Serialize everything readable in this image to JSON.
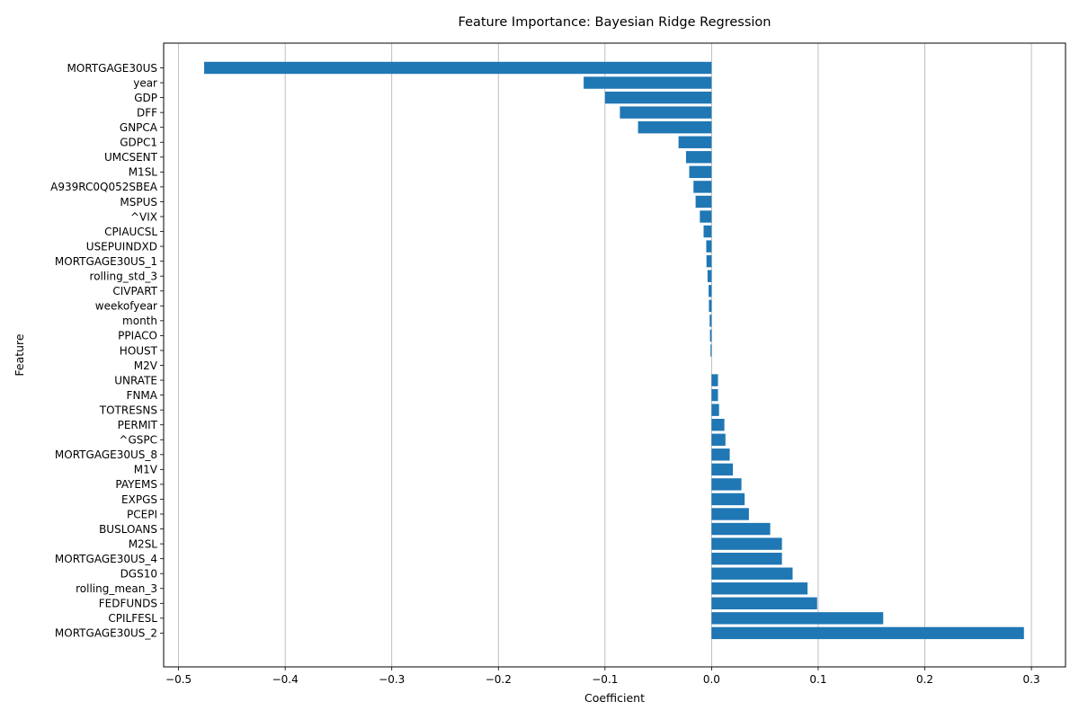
{
  "chart_data": {
    "type": "bar",
    "orientation": "horizontal",
    "title": "Feature Importance: Bayesian Ridge Regression",
    "xlabel": "Coefficient",
    "ylabel": "Feature",
    "xlim": [
      -0.514,
      0.332
    ],
    "x_ticks": [
      -0.5,
      -0.4,
      -0.3,
      -0.2,
      -0.1,
      0.0,
      0.1,
      0.2,
      0.3
    ],
    "x_tick_labels": [
      "−0.5",
      "−0.4",
      "−0.3",
      "−0.2",
      "−0.1",
      "0.0",
      "0.1",
      "0.2",
      "0.3"
    ],
    "grid": "x",
    "bar_color": "#1f77b4",
    "categories": [
      "MORTGAGE30US",
      "year",
      "GDP",
      "DFF",
      "GNPCA",
      "GDPC1",
      "UMCSENT",
      "M1SL",
      "A939RC0Q052SBEA",
      "MSPUS",
      "^VIX",
      "CPIAUCSL",
      "USEPUINDXD",
      "MORTGAGE30US_1",
      "rolling_std_3",
      "CIVPART",
      "weekofyear",
      "month",
      "PPIACO",
      "HOUST",
      "M2V",
      "UNRATE",
      "FNMA",
      "TOTRESNS",
      "PERMIT",
      "^GSPC",
      "MORTGAGE30US_8",
      "M1V",
      "PAYEMS",
      "EXPGS",
      "PCEPI",
      "BUSLOANS",
      "M2SL",
      "MORTGAGE30US_4",
      "DGS10",
      "rolling_mean_3",
      "FEDFUNDS",
      "CPILFESL",
      "MORTGAGE30US_2"
    ],
    "values": [
      -0.476,
      -0.12,
      -0.1,
      -0.086,
      -0.069,
      -0.031,
      -0.024,
      -0.021,
      -0.017,
      -0.015,
      -0.011,
      -0.0075,
      -0.005,
      -0.0048,
      -0.0038,
      -0.0028,
      -0.0025,
      -0.0018,
      -0.0015,
      -0.001,
      0.0,
      0.006,
      0.006,
      0.007,
      0.012,
      0.013,
      0.017,
      0.02,
      0.028,
      0.031,
      0.035,
      0.055,
      0.066,
      0.066,
      0.076,
      0.09,
      0.099,
      0.161,
      0.293
    ]
  }
}
